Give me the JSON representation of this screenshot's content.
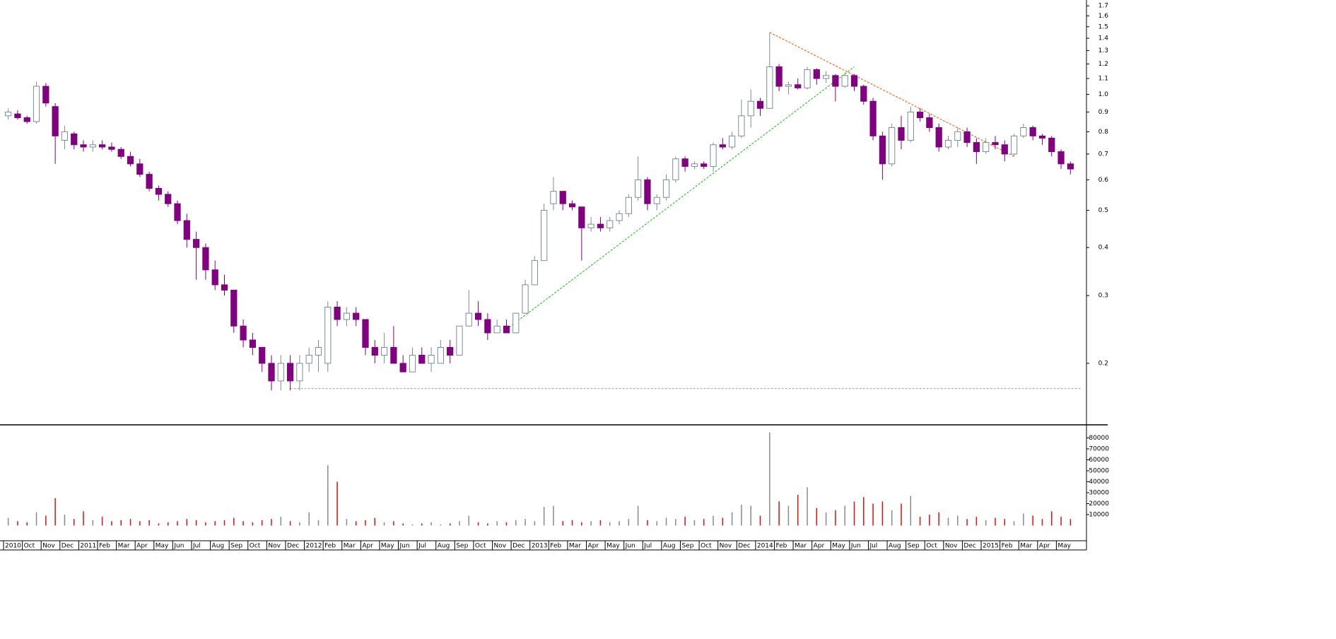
{
  "chart_data": {
    "type": "candlestick",
    "scale": "log",
    "up_color": "#7d8c96",
    "down_color": "#800080",
    "volume_up_color": "#8a8a8a",
    "volume_down_color": "#e01010",
    "categories": [
      "2010",
      null,
      "Oct",
      null,
      "Nov",
      null,
      "Dec",
      null,
      "2011",
      null,
      "Feb",
      null,
      "Mar",
      null,
      "Apr",
      null,
      "May",
      null,
      "Jun",
      null,
      "Jul",
      null,
      "Aug",
      null,
      "Sep",
      null,
      "Oct",
      null,
      "Nov",
      null,
      "Dec",
      null,
      "2012",
      null,
      "Feb",
      null,
      "Mar",
      null,
      "Apr",
      null,
      "May",
      null,
      "Jun",
      null,
      "Jul",
      null,
      "Aug",
      null,
      "Sep",
      null,
      "Oct",
      null,
      "Nov",
      null,
      "Dec",
      null,
      "2013",
      null,
      "Feb",
      null,
      "Mar",
      null,
      "Apr",
      null,
      "May",
      null,
      "Jun",
      null,
      "Jul",
      null,
      "Aug",
      null,
      "Sep",
      null,
      "Oct",
      null,
      "Nov",
      null,
      "Dec",
      null,
      "2014",
      null,
      "Feb",
      null,
      "Mar",
      null,
      "Apr",
      null,
      "May",
      null,
      "Jun",
      null,
      "Jul",
      null,
      "Aug",
      null,
      "Sep",
      null,
      "Oct",
      null,
      "Nov",
      null,
      "Dec",
      null,
      "2015",
      null,
      "Feb",
      null,
      "Mar",
      null,
      "Apr",
      null,
      "May",
      null
    ],
    "open": [
      0.88,
      0.89,
      0.87,
      0.85,
      1.05,
      0.93,
      0.76,
      0.79,
      0.74,
      0.73,
      0.74,
      0.73,
      0.72,
      0.69,
      0.66,
      0.62,
      0.57,
      0.55,
      0.52,
      0.47,
      0.42,
      0.4,
      0.35,
      0.32,
      0.31,
      0.25,
      0.23,
      0.22,
      0.2,
      0.18,
      0.2,
      0.18,
      0.2,
      0.21,
      0.2,
      0.28,
      0.26,
      0.27,
      0.26,
      0.22,
      0.21,
      0.22,
      0.2,
      0.19,
      0.21,
      0.2,
      0.2,
      0.22,
      0.21,
      0.25,
      0.27,
      0.26,
      0.24,
      0.25,
      0.24,
      0.27,
      0.32,
      0.37,
      0.52,
      0.56,
      0.52,
      0.51,
      0.45,
      0.46,
      0.45,
      0.47,
      0.49,
      0.54,
      0.6,
      0.52,
      0.54,
      0.6,
      0.68,
      0.65,
      0.66,
      0.65,
      0.74,
      0.73,
      0.78,
      0.88,
      0.96,
      0.92,
      1.18,
      1.05,
      1.06,
      1.04,
      1.16,
      1.1,
      1.12,
      1.05,
      1.12,
      1.05,
      0.96,
      0.78,
      0.66,
      0.82,
      0.76,
      0.9,
      0.87,
      0.82,
      0.73,
      0.76,
      0.8,
      0.75,
      0.71,
      0.75,
      0.74,
      0.7,
      0.78,
      0.82,
      0.78,
      0.77,
      0.71,
      0.66
    ],
    "high": [
      0.92,
      0.91,
      0.88,
      1.08,
      1.07,
      0.95,
      0.83,
      0.8,
      0.76,
      0.76,
      0.76,
      0.75,
      0.73,
      0.71,
      0.68,
      0.63,
      0.58,
      0.56,
      0.53,
      0.49,
      0.44,
      0.41,
      0.37,
      0.34,
      0.31,
      0.26,
      0.24,
      0.22,
      0.21,
      0.21,
      0.21,
      0.21,
      0.22,
      0.23,
      0.29,
      0.29,
      0.28,
      0.28,
      0.26,
      0.23,
      0.24,
      0.25,
      0.21,
      0.22,
      0.22,
      0.22,
      0.23,
      0.23,
      0.25,
      0.31,
      0.29,
      0.27,
      0.26,
      0.26,
      0.27,
      0.33,
      0.38,
      0.52,
      0.61,
      0.56,
      0.53,
      0.51,
      0.48,
      0.48,
      0.48,
      0.5,
      0.55,
      0.69,
      0.61,
      0.55,
      0.62,
      0.69,
      0.69,
      0.67,
      0.67,
      0.75,
      0.77,
      0.8,
      0.97,
      1.03,
      0.98,
      1.45,
      1.2,
      1.08,
      1.1,
      1.18,
      1.17,
      1.15,
      1.13,
      1.14,
      1.13,
      1.06,
      0.98,
      0.8,
      0.84,
      0.88,
      0.93,
      0.92,
      0.89,
      0.84,
      0.78,
      0.82,
      0.82,
      0.77,
      0.77,
      0.78,
      0.76,
      0.79,
      0.84,
      0.83,
      0.79,
      0.78,
      0.72,
      0.67
    ],
    "low": [
      0.86,
      0.86,
      0.84,
      0.84,
      0.93,
      0.66,
      0.72,
      0.72,
      0.71,
      0.71,
      0.72,
      0.71,
      0.68,
      0.65,
      0.61,
      0.56,
      0.53,
      0.51,
      0.46,
      0.4,
      0.33,
      0.33,
      0.31,
      0.3,
      0.24,
      0.22,
      0.21,
      0.19,
      0.17,
      0.17,
      0.17,
      0.17,
      0.19,
      0.19,
      0.19,
      0.25,
      0.25,
      0.25,
      0.21,
      0.2,
      0.2,
      0.2,
      0.19,
      0.19,
      0.2,
      0.19,
      0.2,
      0.2,
      0.21,
      0.25,
      0.25,
      0.23,
      0.24,
      0.24,
      0.24,
      0.27,
      0.32,
      0.37,
      0.5,
      0.5,
      0.5,
      0.37,
      0.44,
      0.44,
      0.44,
      0.46,
      0.48,
      0.53,
      0.5,
      0.5,
      0.53,
      0.59,
      0.63,
      0.64,
      0.64,
      0.63,
      0.72,
      0.72,
      0.77,
      0.82,
      0.88,
      0.92,
      1.02,
      1.0,
      1.03,
      1.03,
      1.06,
      1.07,
      0.96,
      1.04,
      1.02,
      0.94,
      0.76,
      0.6,
      0.65,
      0.72,
      0.75,
      0.85,
      0.8,
      0.71,
      0.72,
      0.73,
      0.73,
      0.66,
      0.7,
      0.72,
      0.67,
      0.69,
      0.77,
      0.76,
      0.74,
      0.69,
      0.64,
      0.62
    ],
    "close": [
      0.9,
      0.87,
      0.85,
      1.05,
      0.95,
      0.78,
      0.8,
      0.74,
      0.73,
      0.74,
      0.73,
      0.72,
      0.69,
      0.66,
      0.62,
      0.57,
      0.55,
      0.52,
      0.47,
      0.42,
      0.4,
      0.35,
      0.32,
      0.31,
      0.25,
      0.23,
      0.22,
      0.2,
      0.18,
      0.2,
      0.18,
      0.2,
      0.21,
      0.22,
      0.28,
      0.26,
      0.27,
      0.26,
      0.22,
      0.21,
      0.22,
      0.2,
      0.19,
      0.21,
      0.2,
      0.21,
      0.22,
      0.21,
      0.25,
      0.27,
      0.26,
      0.24,
      0.25,
      0.24,
      0.27,
      0.32,
      0.37,
      0.5,
      0.56,
      0.52,
      0.51,
      0.45,
      0.46,
      0.45,
      0.47,
      0.49,
      0.54,
      0.6,
      0.52,
      0.54,
      0.6,
      0.68,
      0.65,
      0.66,
      0.65,
      0.74,
      0.73,
      0.78,
      0.88,
      0.96,
      0.92,
      1.18,
      1.05,
      1.06,
      1.04,
      1.16,
      1.1,
      1.12,
      1.05,
      1.12,
      1.05,
      0.96,
      0.78,
      0.66,
      0.82,
      0.76,
      0.9,
      0.87,
      0.82,
      0.73,
      0.76,
      0.8,
      0.75,
      0.71,
      0.75,
      0.74,
      0.7,
      0.78,
      0.82,
      0.78,
      0.77,
      0.71,
      0.66,
      0.64
    ],
    "volume": [
      7000,
      4000,
      3000,
      12000,
      9000,
      25000,
      10000,
      6000,
      13000,
      5000,
      8000,
      4000,
      5000,
      6000,
      4000,
      5000,
      2000,
      3000,
      4000,
      6000,
      5000,
      3000,
      4000,
      5000,
      7000,
      4000,
      3000,
      5000,
      6000,
      8000,
      4000,
      3000,
      12000,
      5000,
      55000,
      40000,
      6000,
      4000,
      5000,
      7000,
      3000,
      4000,
      2000,
      1000,
      2000,
      3000,
      1000,
      2000,
      4000,
      9000,
      3000,
      2000,
      4000,
      3000,
      5000,
      6000,
      4000,
      17000,
      18000,
      4000,
      5000,
      3000,
      4000,
      5000,
      3000,
      4000,
      6000,
      18000,
      5000,
      4000,
      7000,
      6000,
      8000,
      5000,
      6000,
      9000,
      7000,
      12000,
      19000,
      18000,
      9000,
      85000,
      22000,
      18000,
      28000,
      35000,
      16000,
      12000,
      14000,
      18000,
      22000,
      26000,
      20000,
      22000,
      14000,
      20000,
      27000,
      8000,
      10000,
      12000,
      7000,
      9000,
      6000,
      8000,
      5000,
      7000,
      6000,
      4000,
      11000,
      9000,
      6000,
      13000,
      8000,
      6000
    ],
    "ylim": [
      0.139,
      1.76
    ],
    "yticks": [
      0.2,
      0.3,
      0.4,
      0.5,
      0.6,
      0.7,
      0.8,
      0.9,
      {
        "value": 1,
        "label": "1.0"
      },
      1.1,
      1.2,
      1.3,
      1.4,
      1.5,
      1.6,
      1.7
    ],
    "volume_lim": [
      0,
      90000
    ],
    "volume_ticks": [
      10000,
      20000,
      30000,
      40000,
      50000,
      60000,
      70000,
      80000
    ],
    "trendlines": [
      {
        "color": "#ff6a1a",
        "at": [
          81,
          107
        ],
        "values": [
          1.45,
          0.69
        ]
      },
      {
        "color": "#2ecc2e",
        "at": [
          53,
          90
        ],
        "values": [
          0.245,
          1.18
        ]
      },
      {
        "color": "#b0b0b0",
        "at": [
          30,
          113
        ],
        "values": [
          0.172,
          0.172
        ]
      }
    ]
  }
}
